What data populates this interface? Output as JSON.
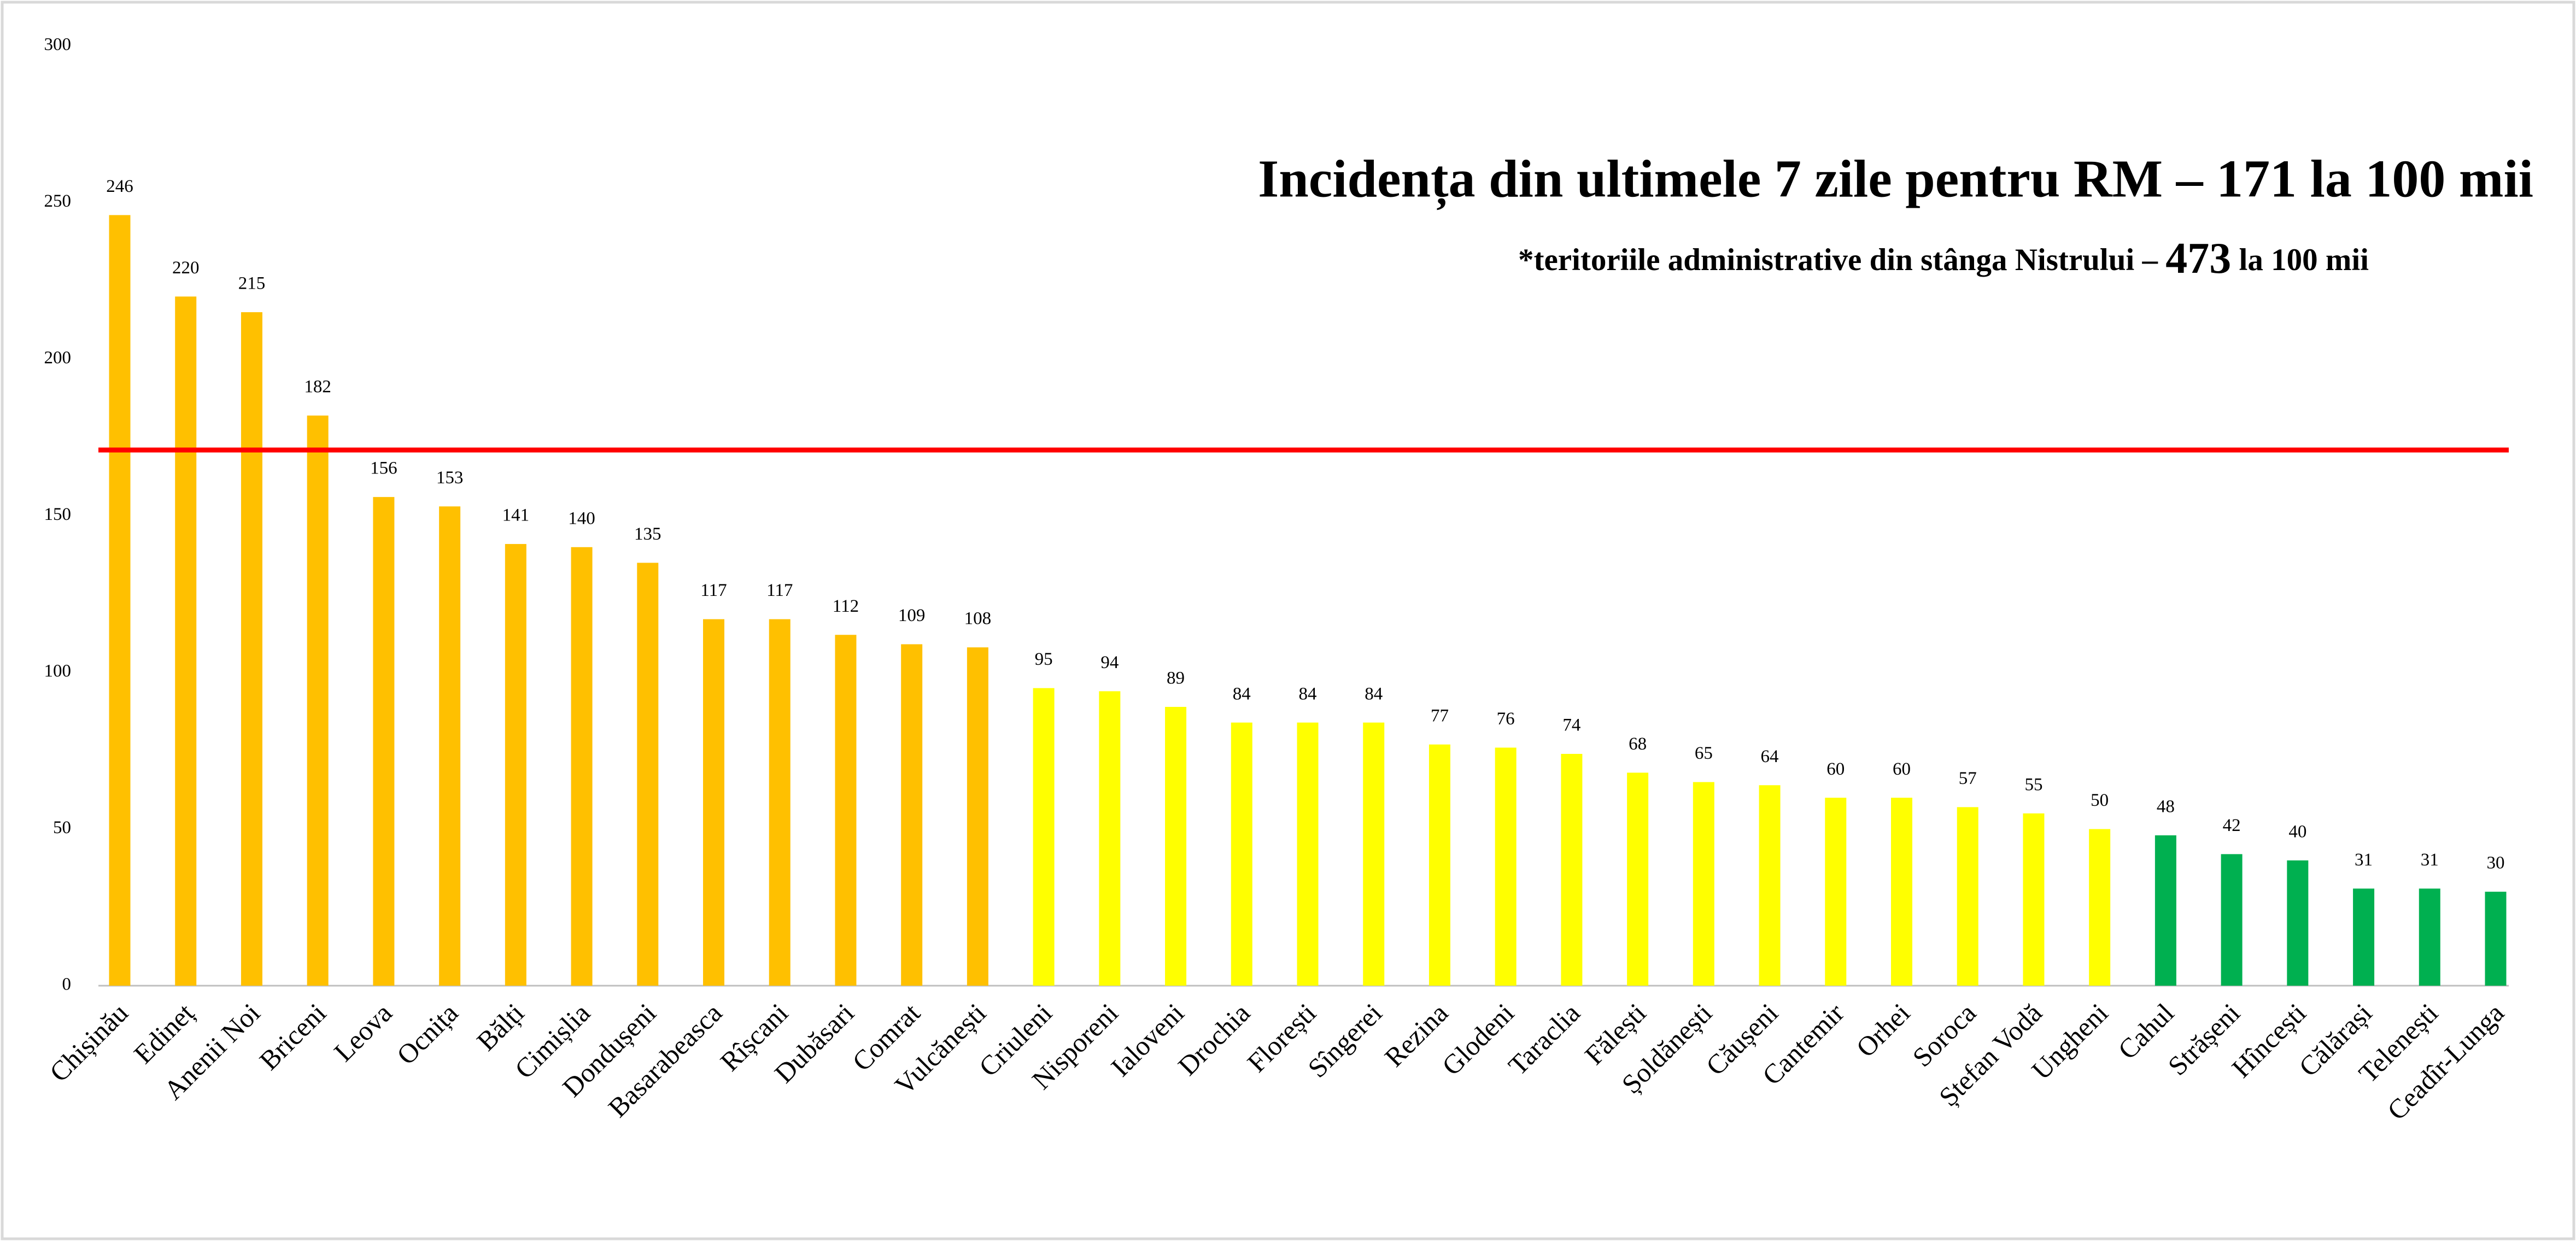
{
  "chart_data": {
    "type": "bar",
    "title": "Incidența din ultimele 7 zile pentru RM – 171 la 100 mii",
    "subtitle": [
      "*teritoriile administrative din stânga Nistrului – ",
      "473",
      " la 100 mii"
    ],
    "categories": [
      "Chișinău",
      "Edineț",
      "Anenii Noi",
      "Briceni",
      "Leova",
      "Ocnița",
      "Bălți",
      "Cimișlia",
      "Dondușeni",
      "Basarabeasca",
      "Rîșcani",
      "Dubăsari",
      "Comrat",
      "Vulcănești",
      "Criuleni",
      "Nisporeni",
      "Ialoveni",
      "Drochia",
      "Florești",
      "Sîngerei",
      "Rezina",
      "Glodeni",
      "Taraclia",
      "Fălești",
      "Șoldănești",
      "Căușeni",
      "Cantemir",
      "Orhei",
      "Soroca",
      "Ștefan Vodă",
      "Ungheni",
      "Cahul",
      "Strășeni",
      "Hîncești",
      "Călărași",
      "Telenești",
      "Ceadîr-Lunga"
    ],
    "values": [
      246,
      220,
      215,
      182,
      156,
      153,
      141,
      140,
      135,
      117,
      117,
      112,
      109,
      108,
      95,
      94,
      89,
      84,
      84,
      84,
      77,
      76,
      74,
      68,
      65,
      64,
      60,
      60,
      57,
      55,
      50,
      48,
      42,
      40,
      31,
      31,
      30
    ],
    "colors": [
      "#ffc000",
      "#ffc000",
      "#ffc000",
      "#ffc000",
      "#ffc000",
      "#ffc000",
      "#ffc000",
      "#ffc000",
      "#ffc000",
      "#ffc000",
      "#ffc000",
      "#ffc000",
      "#ffc000",
      "#ffc000",
      "#ffff00",
      "#ffff00",
      "#ffff00",
      "#ffff00",
      "#ffff00",
      "#ffff00",
      "#ffff00",
      "#ffff00",
      "#ffff00",
      "#ffff00",
      "#ffff00",
      "#ffff00",
      "#ffff00",
      "#ffff00",
      "#ffff00",
      "#ffff00",
      "#ffff00",
      "#00b050",
      "#00b050",
      "#00b050",
      "#00b050",
      "#00b050",
      "#00b050"
    ],
    "reference_line": {
      "value": 171,
      "color": "#ff0000"
    },
    "ylim": [
      0,
      300
    ],
    "yticks": [
      0,
      50,
      100,
      150,
      200,
      250,
      300
    ],
    "grid": false
  }
}
